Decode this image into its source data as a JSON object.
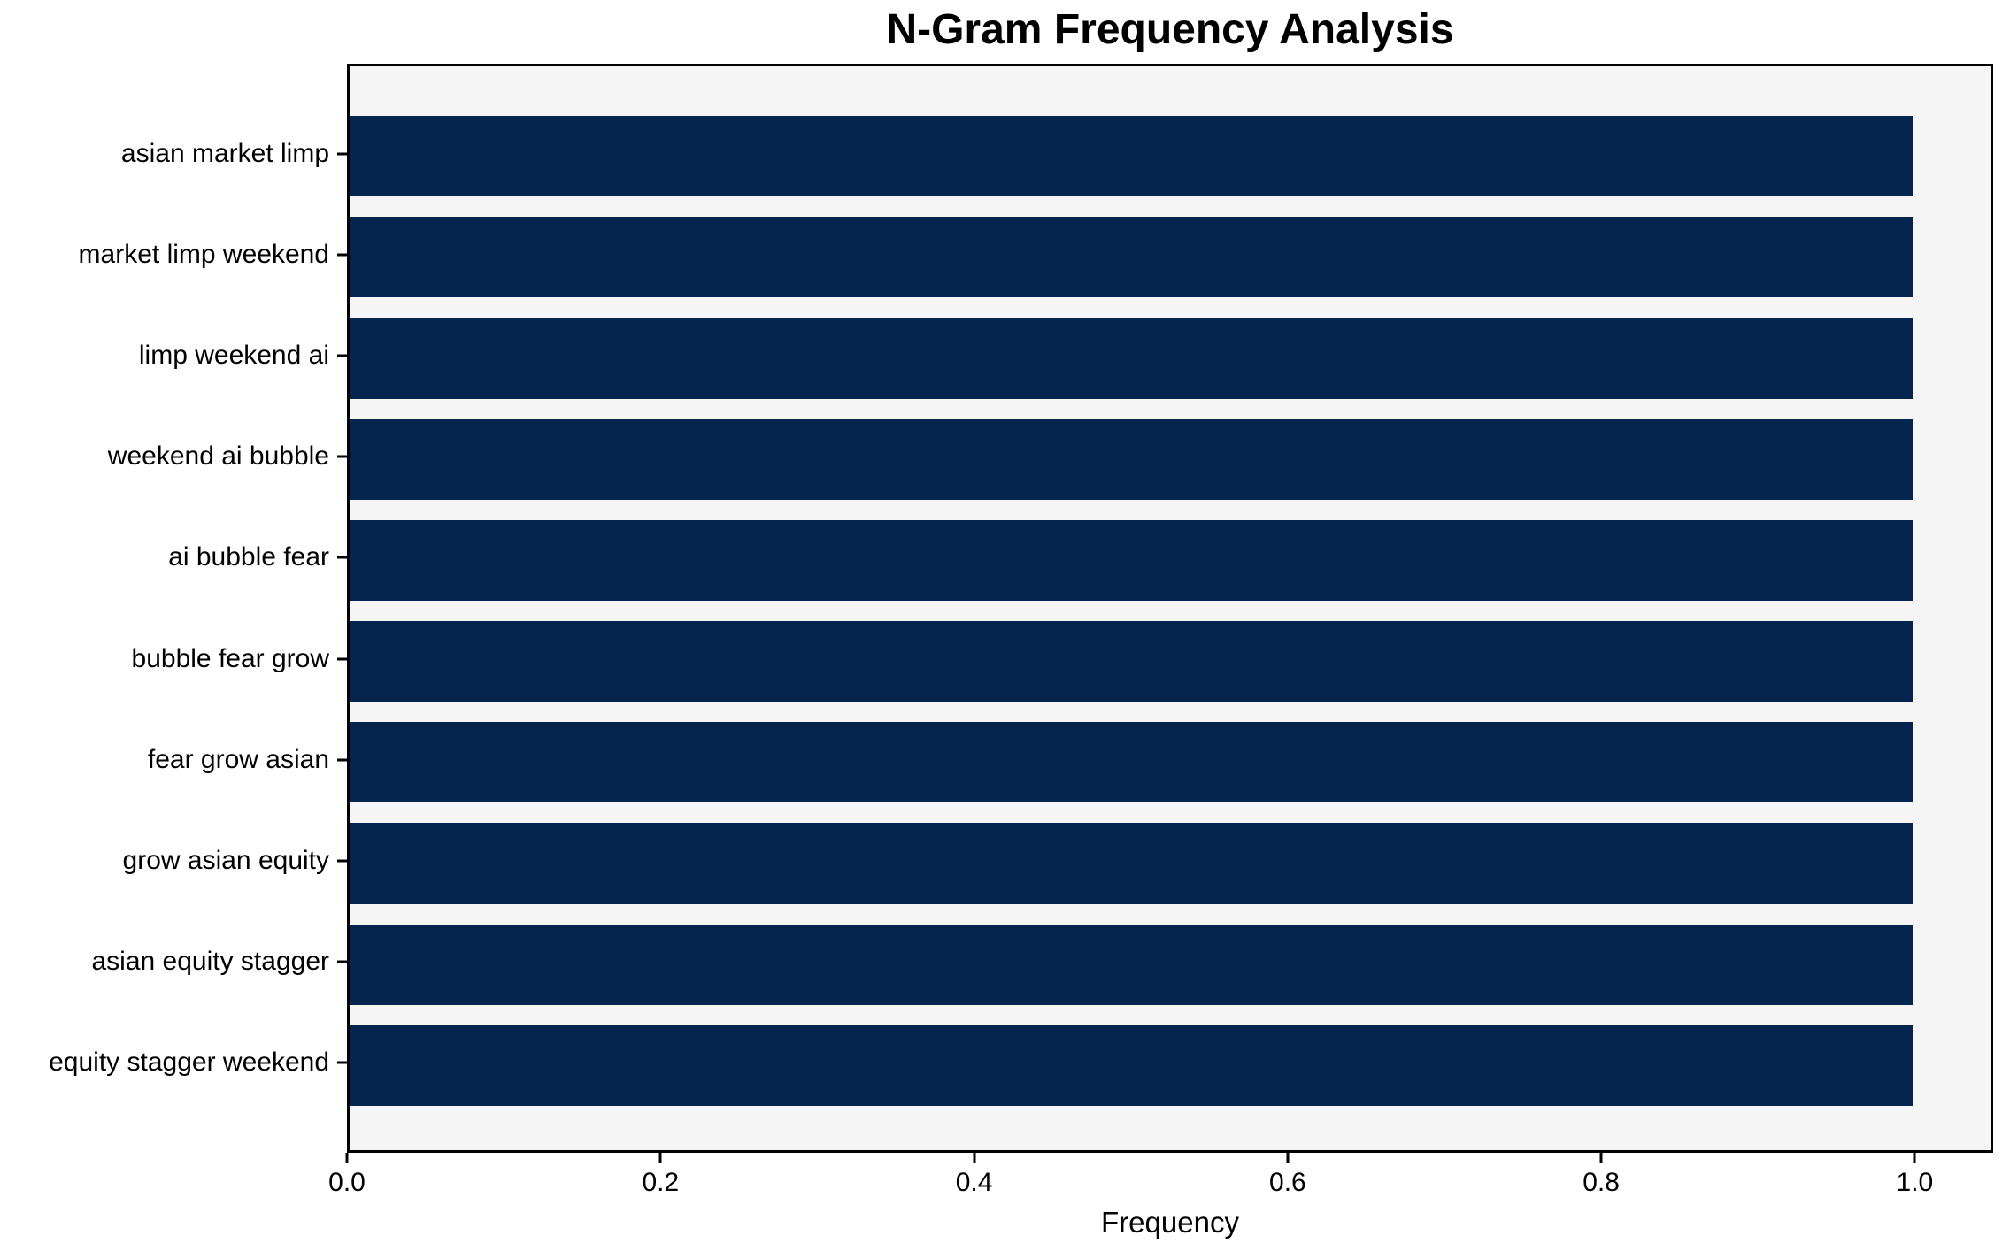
{
  "chart_data": {
    "type": "bar",
    "orientation": "horizontal",
    "title": "N-Gram Frequency Analysis",
    "xlabel": "Frequency",
    "ylabel": "",
    "categories": [
      "asian market limp",
      "market limp weekend",
      "limp weekend ai",
      "weekend ai bubble",
      "ai bubble fear",
      "bubble fear grow",
      "fear grow asian",
      "grow asian equity",
      "asian equity stagger",
      "equity stagger weekend"
    ],
    "values": [
      1.0,
      1.0,
      1.0,
      1.0,
      1.0,
      1.0,
      1.0,
      1.0,
      1.0,
      1.0
    ],
    "xlim": [
      0,
      1.05
    ],
    "xticks": [
      "0.0",
      "0.2",
      "0.4",
      "0.6",
      "0.8",
      "1.0"
    ],
    "grid": false,
    "legend": "none",
    "bar_relative_height": 0.8,
    "colors": {
      "bar": "#05254e",
      "plot_background": "#f5f5f6",
      "figure_background": "#ffffff",
      "axis": "#000000",
      "text": "#000000"
    }
  }
}
